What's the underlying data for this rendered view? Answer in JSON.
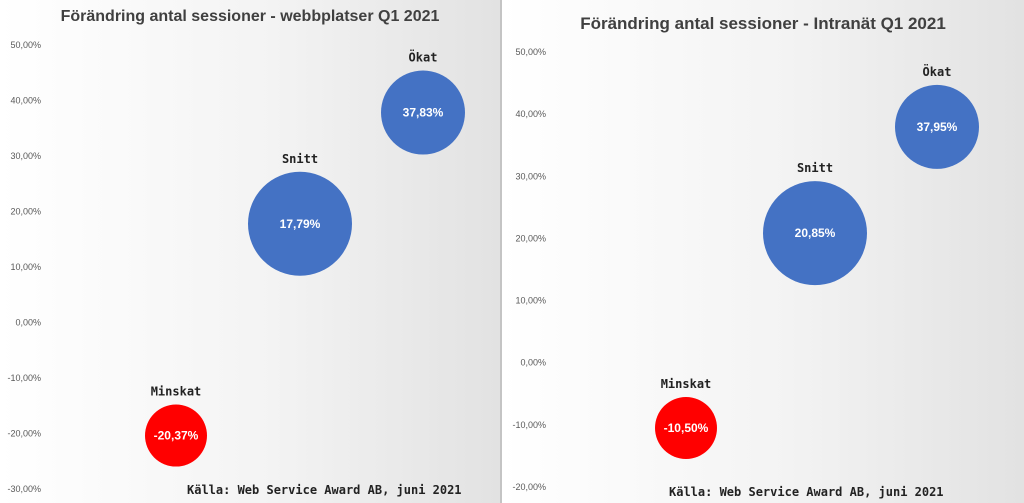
{
  "source_text": "Källa: Web Service Award AB, juni 2021",
  "chart_data": [
    {
      "type": "bubble",
      "title": "Förändring antal sessioner - webbplatser Q1 2021",
      "ylim": [
        -30,
        50
      ],
      "yticks": [
        "50,00%",
        "40,00%",
        "30,00%",
        "20,00%",
        "10,00%",
        "0,00%",
        "-10,00%",
        "-20,00%",
        "-30,00%"
      ],
      "ytick_values": [
        50,
        40,
        30,
        20,
        10,
        0,
        -10,
        -20,
        -30
      ],
      "grid": false,
      "points": [
        {
          "name": "Minskat",
          "x": 1,
          "y": -20.37,
          "size": 1,
          "value_label": "-20,37%",
          "color": "#ff0000"
        },
        {
          "name": "Snitt",
          "x": 2,
          "y": 17.79,
          "size": 3,
          "value_label": "17,79%",
          "color": "#4472c4"
        },
        {
          "name": "Ökat",
          "x": 3,
          "y": 37.83,
          "size": 2,
          "value_label": "37,83%",
          "color": "#4472c4"
        }
      ]
    },
    {
      "type": "bubble",
      "title": "Förändring antal sessioner - Intranät Q1 2021",
      "ylim": [
        -20,
        50
      ],
      "yticks": [
        "50,00%",
        "40,00%",
        "30,00%",
        "20,00%",
        "10,00%",
        "0,00%",
        "-10,00%",
        "-20,00%"
      ],
      "ytick_values": [
        50,
        40,
        30,
        20,
        10,
        0,
        -10,
        -20
      ],
      "grid": false,
      "points": [
        {
          "name": "Minskat",
          "x": 1,
          "y": -10.5,
          "size": 1,
          "value_label": "-10,50%",
          "color": "#ff0000"
        },
        {
          "name": "Snitt",
          "x": 2,
          "y": 20.85,
          "size": 3,
          "value_label": "20,85%",
          "color": "#4472c4"
        },
        {
          "name": "Ökat",
          "x": 3,
          "y": 37.95,
          "size": 2,
          "value_label": "37,95%",
          "color": "#4472c4"
        }
      ]
    }
  ]
}
